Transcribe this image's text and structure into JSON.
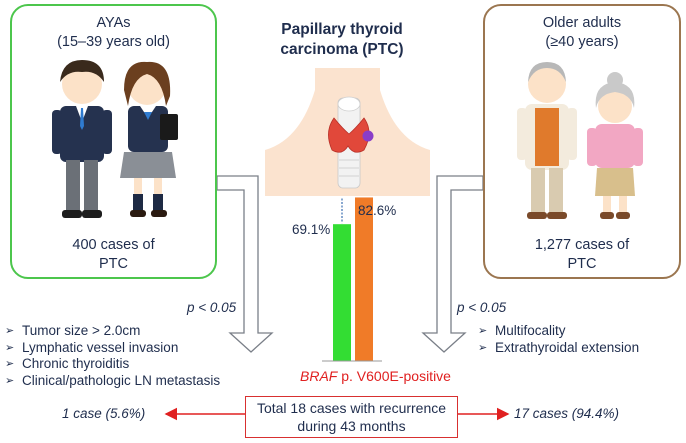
{
  "title": "Papillary thyroid carcinoma (PTC)",
  "aya": {
    "title_line1": "AYAs",
    "title_line2": "(15–39 years old)",
    "count_line1": "400 cases of",
    "count_line2": "PTC",
    "p_value": "p < 0.05",
    "features": [
      "Tumor size > 2.0cm",
      "Lymphatic vessel invasion",
      "Chronic thyroiditis",
      "Clinical/pathologic LN metastasis"
    ],
    "recurrence": "1 case (5.6%)"
  },
  "older": {
    "title_line1": "Older adults",
    "title_line2": "(≥40 years)",
    "count_line1": "1,277 cases of",
    "count_line2": "PTC",
    "p_value": "p < 0.05",
    "features": [
      "Multifocality",
      "Extrathyroidal extension"
    ],
    "recurrence": "17 cases (94.4%)"
  },
  "recurrence_box": {
    "line1": "Total 18 cases with recurrence",
    "line2": "during 43 months"
  },
  "braf": {
    "gene": "BRAF",
    "variant": " p. V600E-positive"
  },
  "chart_data": {
    "type": "bar",
    "categories": [
      "AYAs",
      "Older adults"
    ],
    "values": [
      69.1,
      82.6
    ],
    "value_labels": [
      "69.1%",
      "82.6%"
    ],
    "colors": [
      "#33dd33",
      "#f07b28"
    ],
    "ylim": [
      0,
      100
    ],
    "xlabel": "",
    "ylabel": ""
  },
  "colors": {
    "aya_border": "#4cc64c",
    "older_border": "#9b7650",
    "text": "#1f2d4d",
    "accent_red": "#e02020"
  }
}
